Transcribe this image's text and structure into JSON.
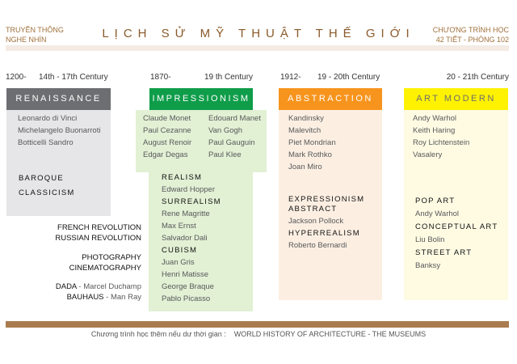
{
  "header": {
    "left": [
      "TRUYỀN THÔNG",
      "NGHE NHÌN"
    ],
    "title": "LỊCH SỬ MỸ THUẬT THẾ GIỚI",
    "right": [
      "CHƯƠNG TRÌNH HỌC",
      "42 TIẾT - PHÒNG 102"
    ]
  },
  "colors": {
    "renaissance": "#6d6e71",
    "impressionism": "#0f9d4a",
    "abstraction": "#f7941d",
    "art_modern": "#fff200",
    "accent": "#a97c50"
  },
  "columns": {
    "renaissance": {
      "start": "1200-",
      "period": "14th - 17th Century",
      "title": "RENAISSANCE",
      "artists": [
        "Leonardo di Vinci",
        "Michelangelo Buonarroti",
        "Botticelli Sandro"
      ],
      "movements": [
        "BAROQUE",
        "CLASSICISM"
      ]
    },
    "impressionism": {
      "start": "1870-",
      "period": "19 th Century",
      "title": "IMPRESSIONISM",
      "artists_left": [
        "Claude Monet",
        "Paul Cezanne",
        "August Renoir",
        "Edgar Degas"
      ],
      "artists_right": [
        "Edouard Manet",
        "Van Gogh",
        "Paul Gauguin",
        "Paul Klee"
      ],
      "groups": [
        {
          "name": "REALISM",
          "artists": [
            "Edward Hopper"
          ]
        },
        {
          "name": "SURREALISM",
          "artists": [
            "Rene Magritte",
            "Max Ernst",
            "Salvador Dali"
          ]
        },
        {
          "name": "CUBISM",
          "artists": [
            "Juan Gris",
            "Henri Matisse",
            "George Braque",
            "Pablo Picasso"
          ]
        }
      ]
    },
    "abstraction": {
      "start": "1912-",
      "period": "19 - 20th Century",
      "title": "ABSTRACTION",
      "artists": [
        "Kandinsky",
        "Malevitch",
        "Piet Mondrian",
        "Mark Rothko",
        "Joan Miro"
      ],
      "groups": [
        {
          "name": "EXPRESSIONISM ABSTRACT",
          "artists": [
            "Jackson Pollock"
          ]
        },
        {
          "name": "HYPERREALISM",
          "artists": [
            "Roberto Bernardi"
          ]
        }
      ]
    },
    "art_modern": {
      "period": "20 - 21th Century",
      "title": "ART MODERN",
      "artists": [
        "Andy Warhol",
        "Keith Haring",
        "Roy Lichtenstein",
        "Vasalery"
      ],
      "groups": [
        {
          "name": "POP ART",
          "artists": [
            "Andy Warhol"
          ]
        },
        {
          "name": "CONCEPTUAL ART",
          "artists": [
            "Liu Bolin"
          ]
        },
        {
          "name": "STREET ART",
          "artists": [
            "Banksy"
          ]
        }
      ]
    }
  },
  "side_notes": {
    "revolutions": [
      "FRENCH REVOLUTION",
      "RUSSIAN REVOLUTION"
    ],
    "media": [
      "PHOTOGRAPHY",
      "CINEMATOGRAPHY"
    ],
    "dada": "DADA",
    "dada_artist": " -  Marcel Duchamp",
    "bauhaus": "BAUHAUS",
    "bauhaus_artist": " - Man Ray"
  },
  "footer": {
    "label": "Chương trình học thêm nếu dư thời gian :",
    "value": "WORLD HISTORY OF ARCHITECTURE - THE MUSEUMS"
  }
}
